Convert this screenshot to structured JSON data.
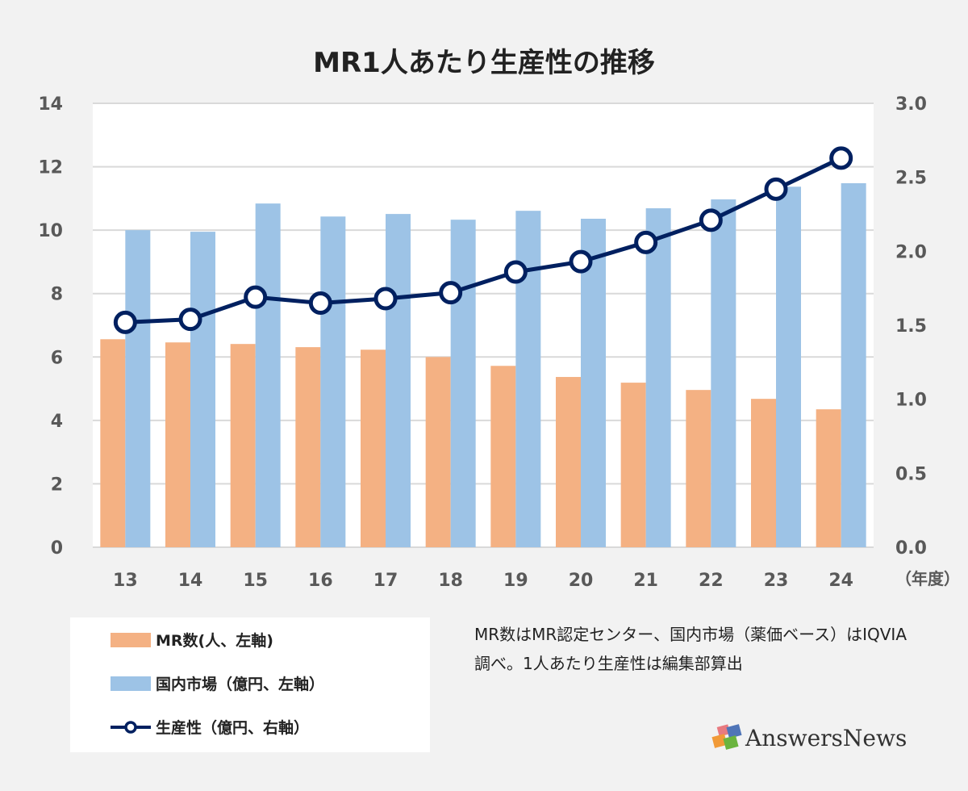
{
  "chart_data": {
    "type": "bar",
    "title": "MR1人あたり生産性の推移",
    "categories": [
      "13",
      "14",
      "15",
      "16",
      "17",
      "18",
      "19",
      "20",
      "21",
      "22",
      "23",
      "24"
    ],
    "x_unit_label": "（年度）",
    "left_axis": {
      "ylim": [
        0,
        14
      ],
      "ticks": [
        "0",
        "2",
        "4",
        "6",
        "8",
        "10",
        "12",
        "14"
      ]
    },
    "right_axis": {
      "ylim": [
        0,
        3.0
      ],
      "ticks": [
        "0.0",
        "0.5",
        "1.0",
        "1.5",
        "2.0",
        "2.5",
        "3.0"
      ]
    },
    "grid": true,
    "series": [
      {
        "name": "MR数(人、左軸)",
        "type": "bar",
        "axis": "left",
        "color": "#f4b183",
        "values": [
          6.56,
          6.46,
          6.41,
          6.31,
          6.23,
          6.0,
          5.72,
          5.37,
          5.19,
          4.96,
          4.68,
          4.35
        ]
      },
      {
        "name": "国内市場（億円、左軸）",
        "type": "bar",
        "axis": "left",
        "color": "#9dc3e6",
        "values": [
          10.0,
          9.95,
          10.84,
          10.43,
          10.51,
          10.33,
          10.61,
          10.36,
          10.69,
          10.97,
          11.37,
          11.48
        ]
      },
      {
        "name": "生産性（億円、右軸）",
        "type": "line",
        "axis": "right",
        "color": "#002060",
        "values": [
          1.52,
          1.54,
          1.69,
          1.65,
          1.68,
          1.72,
          1.86,
          1.93,
          2.06,
          2.21,
          2.42,
          2.63
        ]
      }
    ],
    "legend_placement": "bottom-left"
  },
  "note": "MR数はMR認定センター、国内市場（薬価ベース）はIQVIA調べ。1人あたり生産性は編集部算出",
  "logo": "AnswersNews"
}
